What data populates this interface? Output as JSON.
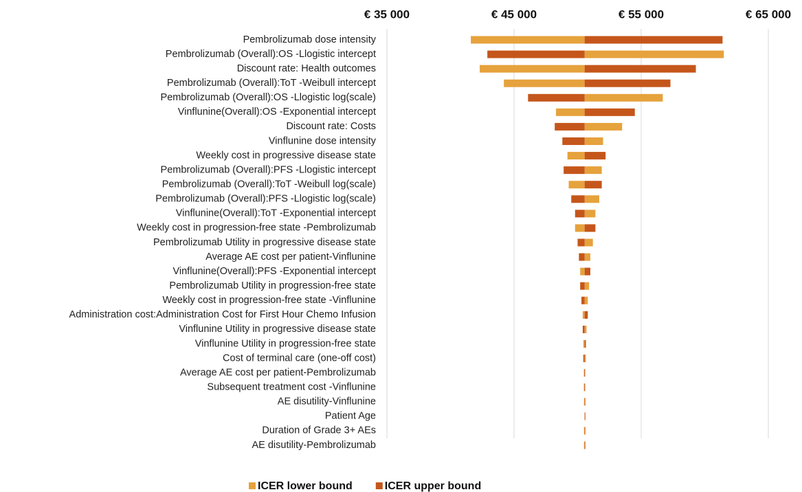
{
  "chart_data": {
    "type": "tornado",
    "orientation": "horizontal",
    "categories": [
      "Pembrolizumab dose intensity",
      "Pembrolizumab (Overall):OS -Llogistic intercept",
      "Discount rate: Health outcomes",
      "Pembrolizumab (Overall):ToT -Weibull intercept",
      "Pembrolizumab (Overall):OS -Llogistic log(scale)",
      "Vinflunine(Overall):OS -Exponential intercept",
      "Discount rate: Costs",
      "Vinflunine dose intensity",
      "Weekly cost in progressive disease state",
      "Pembrolizumab (Overall):PFS -Llogistic intercept",
      "Pembrolizumab (Overall):ToT -Weibull log(scale)",
      "Pembrolizumab (Overall):PFS -Llogistic log(scale)",
      "Vinflunine(Overall):ToT -Exponential intercept",
      "Weekly cost in progression-free state -Pembrolizumab",
      "Pembrolizumab Utility in progressive disease state",
      "Average AE cost per patient-Vinflunine",
      "Vinflunine(Overall):PFS -Exponential intercept",
      "Pembrolizumab Utility in progression-free state",
      "Weekly cost in progression-free state -Vinflunine",
      "Administration cost:Administration Cost for First Hour Chemo Infusion",
      "Vinflunine Utility in progressive disease state",
      "Vinflunine Utility in progression-free state",
      "Cost of terminal care (one-off cost)",
      "Average AE cost per patient-Pembrolizumab",
      "Subsequent treatment cost -Vinflunine",
      "AE disutility-Vinflunine",
      "Patient Age",
      "Duration of Grade 3+ AEs",
      "AE disutility-Pembrolizumab"
    ],
    "base": 50550,
    "series": [
      {
        "name": "ICER lower bound",
        "color": "#E6A23C",
        "values": [
          41600,
          61500,
          42300,
          44200,
          56700,
          48300,
          53500,
          52000,
          49200,
          51900,
          49300,
          51700,
          51400,
          49800,
          51200,
          51000,
          50200,
          50900,
          50800,
          50400,
          50700,
          50450,
          50650,
          50600,
          50600,
          50500,
          50550,
          50500,
          50500
        ]
      },
      {
        "name": "ICER upper bound",
        "color": "#C5561B",
        "values": [
          61400,
          42900,
          59300,
          57300,
          46100,
          54500,
          48200,
          48800,
          52200,
          48900,
          51900,
          49500,
          49800,
          51400,
          50000,
          50100,
          51000,
          50200,
          50300,
          50800,
          50400,
          50650,
          50450,
          50500,
          50500,
          50600,
          50550,
          50600,
          50600
        ]
      }
    ],
    "xlim": [
      35000,
      65000
    ],
    "xticks": [
      {
        "value": 35000,
        "label": "€ 35 000"
      },
      {
        "value": 45000,
        "label": "€ 45 000"
      },
      {
        "value": 55000,
        "label": "€ 55 000"
      },
      {
        "value": 65000,
        "label": "€ 65 000"
      }
    ],
    "grid": true,
    "legend": "bottom"
  }
}
